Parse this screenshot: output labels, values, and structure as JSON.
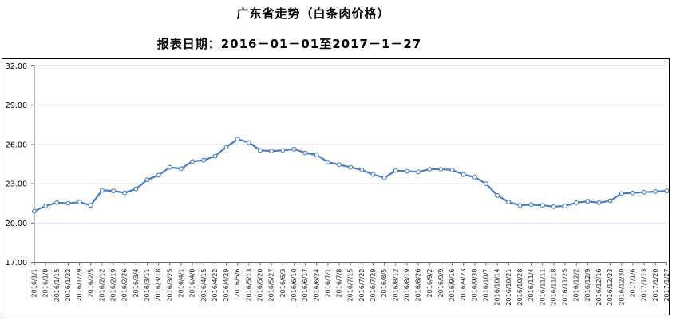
{
  "title": "广东省走势（白条肉价格）",
  "subtitle": "报表日期：2016－01－01至2017－1－27",
  "colors": {
    "line": "#4a7ebb",
    "marker_fill": "#ffffff",
    "grid": "#dbe4ef",
    "axis": "#6e6e6e",
    "frame": "#000000",
    "y_label": "#000000",
    "x_label": "#1f1f2e"
  },
  "chart_data": {
    "type": "line",
    "title": "广东省走势（白条肉价格）",
    "subtitle": "报表日期：2016－01－01至2017－1－27",
    "x": [
      "2016/1/1",
      "2016/1/8",
      "2016/1/15",
      "2016/1/22",
      "2016/1/29",
      "2016/2/5",
      "2016/2/12",
      "2016/2/19",
      "2016/2/26",
      "2016/3/4",
      "2016/3/11",
      "2016/3/18",
      "2016/3/25",
      "2016/4/1",
      "2016/4/8",
      "2016/4/15",
      "2016/4/22",
      "2016/4/29",
      "2016/5/6",
      "2016/5/13",
      "2016/5/20",
      "2016/5/27",
      "2016/6/3",
      "2016/6/10",
      "2016/6/17",
      "2016/6/24",
      "2016/7/1",
      "2016/7/8",
      "2016/7/15",
      "2016/7/22",
      "2016/7/29",
      "2016/8/5",
      "2016/8/12",
      "2016/8/19",
      "2016/8/26",
      "2016/9/2",
      "2016/9/9",
      "2016/9/16",
      "2016/9/23",
      "2016/9/30",
      "2016/10/7",
      "2016/10/14",
      "2016/10/21",
      "2016/10/28",
      "2016/11/4",
      "2016/11/11",
      "2016/11/18",
      "2016/11/25",
      "2016/12/2",
      "2016/12/9",
      "2016/12/16",
      "2016/12/23",
      "2016/12/30",
      "2017/1/6",
      "2017/1/13",
      "2017/1/20",
      "2017/1/27"
    ],
    "series": [
      {
        "name": "白条肉价格",
        "values": [
          20.9,
          21.3,
          21.55,
          21.5,
          21.6,
          21.35,
          22.5,
          22.45,
          22.3,
          22.6,
          23.3,
          23.65,
          24.25,
          24.15,
          24.7,
          24.8,
          25.1,
          25.8,
          26.4,
          26.15,
          25.55,
          25.5,
          25.55,
          25.65,
          25.35,
          25.2,
          24.65,
          24.45,
          24.25,
          24.05,
          23.7,
          23.45,
          24.0,
          23.95,
          23.9,
          24.1,
          24.1,
          24.05,
          23.7,
          23.5,
          23.0,
          22.1,
          21.6,
          21.35,
          21.4,
          21.35,
          21.25,
          21.3,
          21.55,
          21.65,
          21.55,
          21.7,
          22.25,
          22.3,
          22.35,
          22.4,
          22.45
        ]
      }
    ],
    "xlabel": "",
    "ylabel": "",
    "ylim": [
      17,
      32
    ],
    "yticks": [
      17,
      20,
      23,
      26,
      29,
      32
    ],
    "ytick_format": "0.00",
    "grid": true,
    "legend": "none",
    "marker": "circle"
  }
}
